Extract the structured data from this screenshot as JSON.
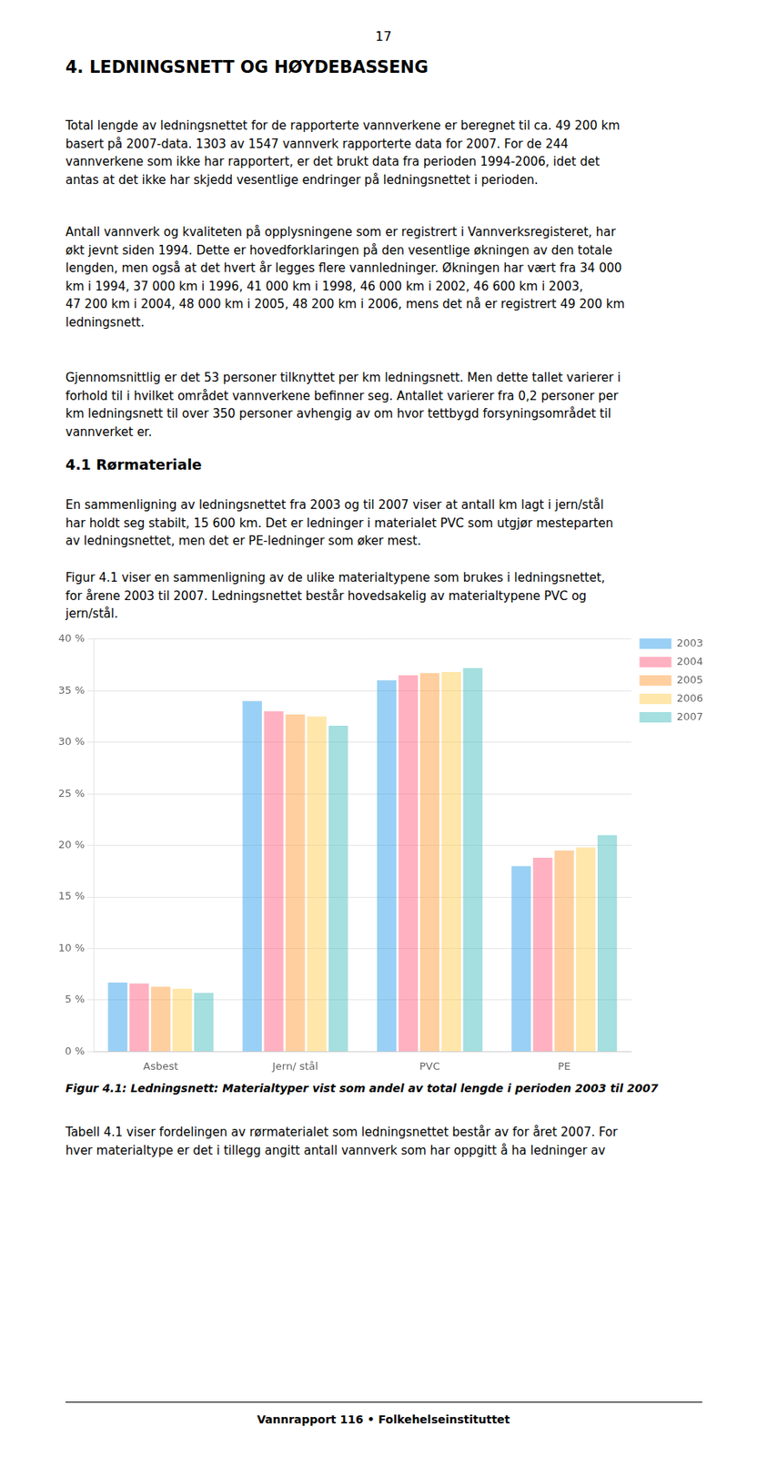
{
  "page_number": "17",
  "chapter_title": "4. LEDNINGSNETT OG HØYDEBASSENG",
  "para1": "Total lengde av ledningsnettet for de rapporterte vannverkene er beregnet til ca. 49 200 km\nbasert på 2007-data. 1303 av 1547 vannverk rapporterte data for 2007. For de 244\nvannverkene som ikke har rapportert, er det brukt data fra perioden 1994-2006, idet det\nantas at det ikke har skjedd vesentlige endringer på ledningsnettet i perioden.",
  "para2": "Antall vannverk og kvaliteten på opplysningene som er registrert i Vannverksregisteret, har\nøkt jevnt siden 1994. Dette er hovedforklaringen på den vesentlige økningen av den totale\nlengden, men også at det hvert år legges flere vannledninger. Økningen har vært fra 34 000\nkm i 1994, 37 000 km i 1996, 41 000 km i 1998, 46 000 km i 2002, 46 600 km i 2003,\n47 200 km i 2004, 48 000 km i 2005, 48 200 km i 2006, mens det nå er registrert 49 200 km\nledningsnett.",
  "para3": "Gjennomsnittlig er det 53 personer tilknyttet per km ledningsnett. Men dette tallet varierer i\nforhold til i hvilket området vannverkene befinner seg. Antallet varierer fra 0,2 personer per\nkm ledningsnett til over 350 personer avhengig av om hvor tettbygd forsyningsområdet til\nvannverket er.",
  "section41": "4.1 Rørmateriale",
  "para4": "En sammenligning av ledningsnettet fra 2003 og til 2007 viser at antall km lagt i jern/stål\nhar holdt seg stabilt, 15 600 km. Det er ledninger i materialet PVC som utgjør mesteparten\nav ledningsnettet, men det er PE-ledninger som øker mest.",
  "para5": "Figur 4.1 viser en sammenligning av de ulike materialtypene som brukes i ledningsnettet,\nfor årene 2003 til 2007. Ledningsnettet består hovedsakelig av materialtypene PVC og\njern/stål.",
  "para6": "Tabell 4.1 viser fordelingen av rørmaterialet som ledningsnettet består av for året 2007. For\nhver materialtype er det i tillegg angitt antall vannverk som har oppgitt å ha ledninger av",
  "footer": "Vannrapport 116 • Folkehelseinstituttet",
  "chart_data": {
    "type": "bar",
    "title": "Figur 4.1: Ledningsnett: Materialtyper vist som andel av total lengde i perioden 2003 til 2007",
    "categories": [
      "Asbest",
      "Jern/ stål",
      "PVC",
      "PE"
    ],
    "series": [
      {
        "name": "2003",
        "values": [
          6.7,
          34.0,
          36.0,
          18.0
        ]
      },
      {
        "name": "2004",
        "values": [
          6.6,
          33.0,
          36.5,
          18.8
        ]
      },
      {
        "name": "2005",
        "values": [
          6.3,
          32.7,
          36.7,
          19.5
        ]
      },
      {
        "name": "2006",
        "values": [
          6.1,
          32.5,
          36.8,
          19.8
        ]
      },
      {
        "name": "2007",
        "values": [
          5.7,
          31.6,
          37.2,
          21.0
        ]
      }
    ],
    "ylim": [
      0,
      40
    ],
    "yticks": [
      {
        "value": 0,
        "label": "0 %"
      },
      {
        "value": 5,
        "label": "5 %"
      },
      {
        "value": 10,
        "label": "10 %"
      },
      {
        "value": 15,
        "label": "15 %"
      },
      {
        "value": 20,
        "label": "20 %"
      },
      {
        "value": 25,
        "label": "25 %"
      },
      {
        "value": 30,
        "label": "30 %"
      },
      {
        "value": 35,
        "label": "35 %"
      },
      {
        "value": 40,
        "label": "40 %"
      }
    ],
    "grid": true,
    "legend": "right"
  }
}
